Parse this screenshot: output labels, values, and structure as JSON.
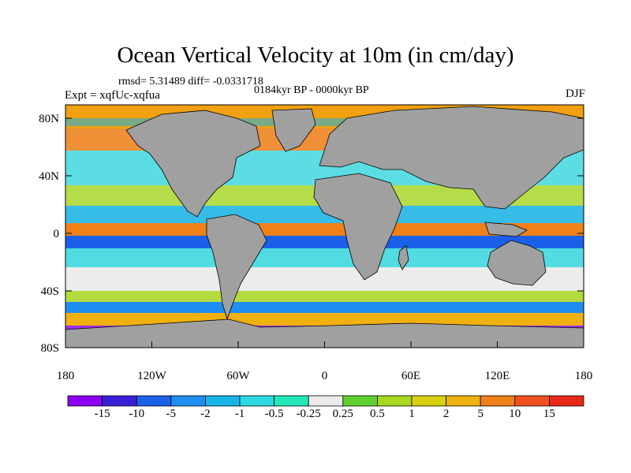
{
  "title": "Ocean Vertical Velocity at 10m (in cm/day)",
  "stats": "rmsd= 5.31489 diff= -0.0331718",
  "period": "0184kyr BP - 0000kyr BP",
  "experiment": "Expt = xqfUc-xqfua",
  "season": "DJF",
  "axes": {
    "lat_ticks": [
      "80N",
      "40N",
      "0",
      "40S",
      "80S"
    ],
    "lon_ticks": [
      "180",
      "120W",
      "60W",
      "0",
      "60E",
      "120E",
      "180"
    ]
  },
  "colorbar": {
    "labels": [
      "-15",
      "-10",
      "-5",
      "-2",
      "-1",
      "-0.5",
      "-0.25",
      "0.25",
      "0.5",
      "1",
      "2",
      "5",
      "10",
      "15"
    ],
    "colors": [
      "#8b00f0",
      "#3a1fd8",
      "#1a60e8",
      "#1e8ef0",
      "#18b4e8",
      "#2cd8e0",
      "#22e8b8",
      "#ececec",
      "#60d030",
      "#a8d820",
      "#d8d010",
      "#f0b010",
      "#f08018",
      "#f05020",
      "#e82818"
    ]
  },
  "land_color": "#a0a0a0"
}
